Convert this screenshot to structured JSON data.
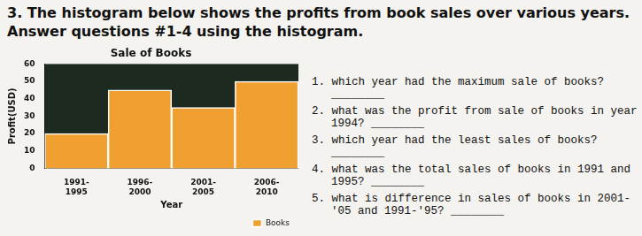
{
  "header": "3. The histogram below shows the profits from book sales over various years. Answer questions #1-4 using the histogram.",
  "questions": [
    "1. which year had the maximum sale of books? ________",
    "2. what was the profit from sale of books in year 1994? ________",
    "3. which year had the least sales of books? ________",
    "4. what was the total sales of books in 1991 and 1995? ________",
    "5. what is difference in sales of books in 2001-'05 and 1991-'95? ________"
  ],
  "chart_data": {
    "type": "bar",
    "title": "Sale of Books",
    "x_label": "Year",
    "y_label": "Profit(USD)",
    "categories": [
      "1991-1995",
      "1996-2000",
      "2001-2005",
      "2006-2010"
    ],
    "series": [
      {
        "name": "Books",
        "color": "#f0a030",
        "values": [
          20,
          45,
          35,
          50
        ]
      }
    ],
    "ylim": [
      0,
      60
    ],
    "yticks": [
      0,
      10,
      20,
      30,
      40,
      50,
      60
    ],
    "grid": false,
    "legend": "bottom right"
  }
}
